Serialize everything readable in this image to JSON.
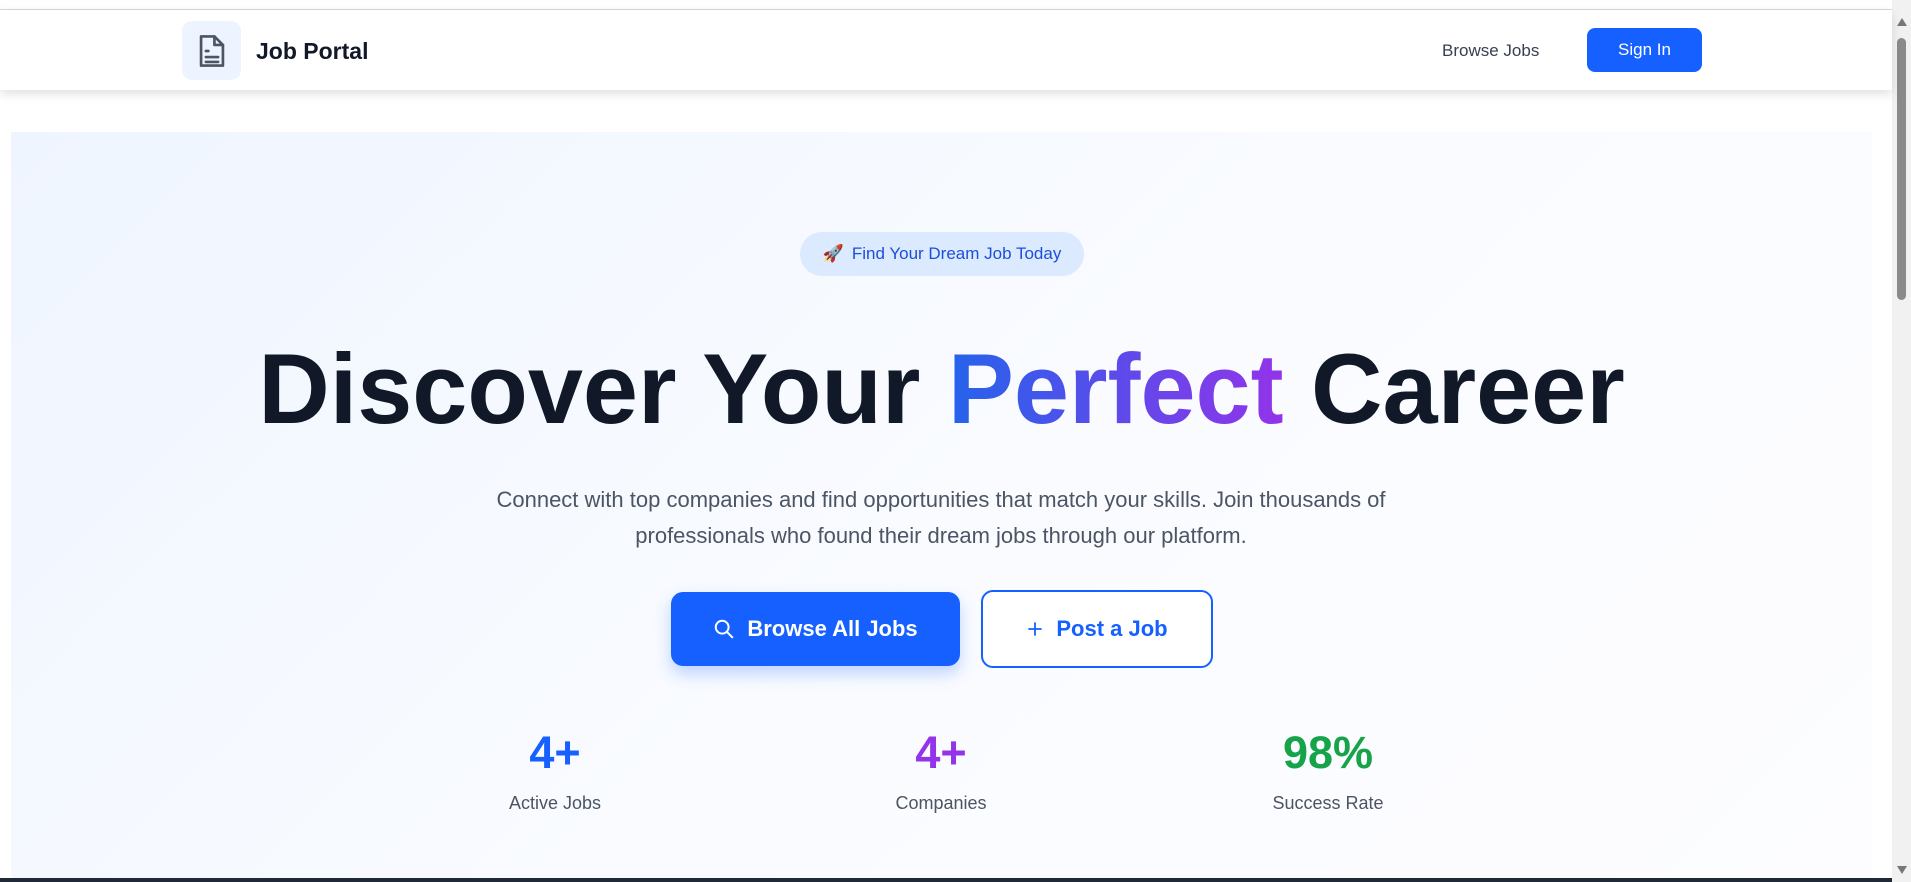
{
  "header": {
    "brand": "Job Portal",
    "logo_icon": "document-icon",
    "nav_browse": "Browse Jobs",
    "sign_in": "Sign In"
  },
  "hero": {
    "badge_emoji": "🚀",
    "badge_text": "Find Your Dream Job Today",
    "title_part1": "Discover Your ",
    "title_highlight": "Perfect",
    "title_part2": " Career",
    "subtitle": "Connect with top companies and find opportunities that match your skills. Join thousands of professionals who found their dream jobs through our platform.",
    "browse_button": "Browse All Jobs",
    "post_button": "Post a Job",
    "stats": [
      {
        "value": "4+",
        "label": "Active Jobs",
        "color": "#1560ff"
      },
      {
        "value": "4+",
        "label": "Companies",
        "color": "#9333ea"
      },
      {
        "value": "98%",
        "label": "Success Rate",
        "color": "#16a34a"
      }
    ]
  },
  "colors": {
    "primary": "#1560ff",
    "highlight_start": "#2563eb",
    "highlight_end": "#9333ea"
  }
}
